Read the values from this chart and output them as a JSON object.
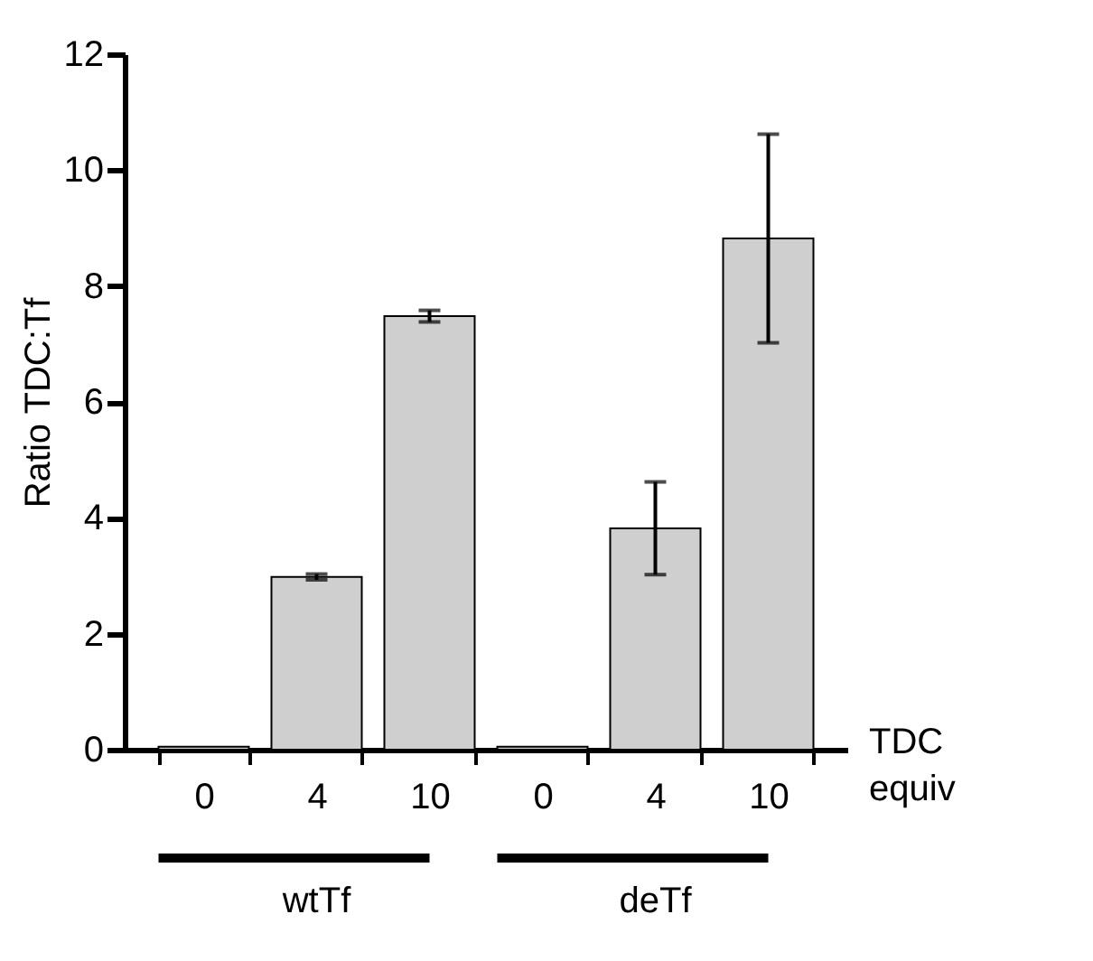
{
  "chart_data": {
    "type": "bar",
    "ylabel": "Ratio TDC:Tf",
    "categories": [
      "0",
      "4",
      "10",
      "0",
      "4",
      "10"
    ],
    "values": [
      0.05,
      2.98,
      7.48,
      0.05,
      3.82,
      8.82
    ],
    "errors": [
      null,
      0.05,
      0.1,
      null,
      0.8,
      1.8
    ],
    "color": "#cfcfcf",
    "ylim": [
      0,
      12
    ],
    "yticks": [
      0,
      2,
      4,
      6,
      8,
      10,
      12
    ],
    "grid": false,
    "annotations": [
      "TDC\nequiv",
      "wtTf",
      "deTf"
    ]
  }
}
